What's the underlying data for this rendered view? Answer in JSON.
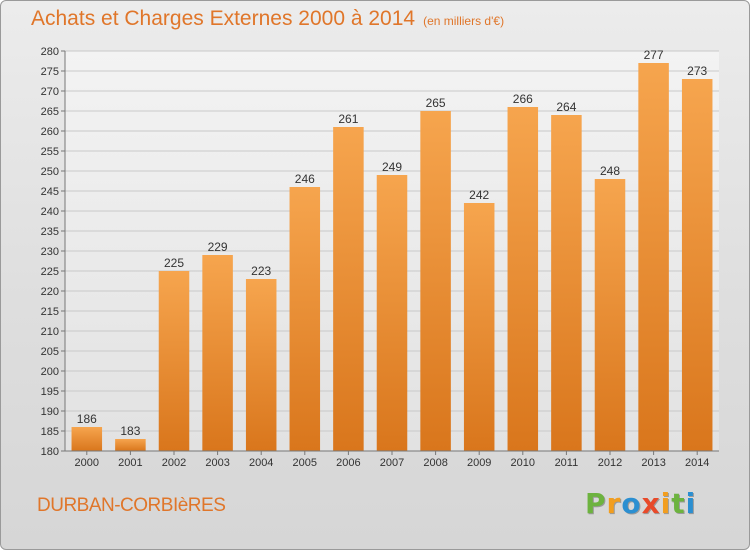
{
  "header": {
    "title": "Achats et Charges Externes 2000 à 2014",
    "unit": "(en milliers d'€)"
  },
  "footer": {
    "town": "DURBAN-CORBIèRES",
    "logo_letters": [
      "P",
      "r",
      "o",
      "x",
      "i",
      "t",
      "i"
    ],
    "logo_colors": [
      "#6db33f",
      "#f29e1f",
      "#2b8fd1",
      "#e84a2a",
      "#f29e1f",
      "#6db33f",
      "#2b8fd1"
    ]
  },
  "chart_data": {
    "type": "bar",
    "title": "Achats et Charges Externes 2000 à 2014",
    "subtitle": "(en milliers d'€)",
    "categories": [
      "2000",
      "2001",
      "2002",
      "2003",
      "2004",
      "2005",
      "2006",
      "2007",
      "2008",
      "2009",
      "2010",
      "2011",
      "2012",
      "2013",
      "2014"
    ],
    "values": [
      186,
      183,
      225,
      229,
      223,
      246,
      261,
      249,
      265,
      242,
      266,
      264,
      248,
      277,
      273
    ],
    "ylim": [
      180,
      280
    ],
    "yticks": [
      180,
      185,
      190,
      195,
      200,
      205,
      210,
      215,
      220,
      225,
      230,
      235,
      240,
      245,
      250,
      255,
      260,
      265,
      270,
      275,
      280
    ],
    "grid": true,
    "legend": "none",
    "bar_color_top": "#f6a54e",
    "bar_color_bottom": "#d9761c"
  }
}
